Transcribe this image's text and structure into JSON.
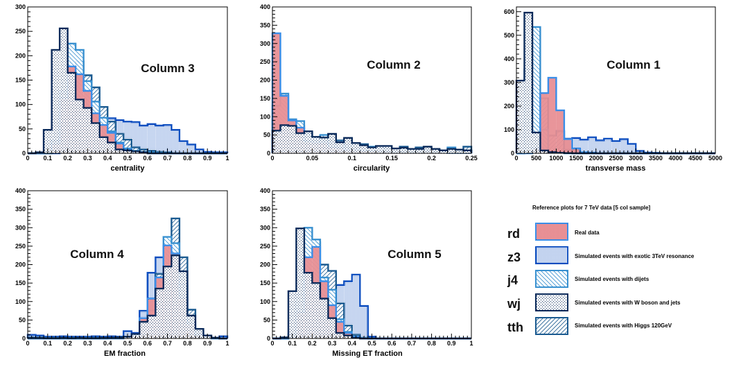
{
  "legend": {
    "title": "Reference plots for 7 TeV data [5 col sample]",
    "entries": [
      {
        "code": "rd",
        "label": "Real data",
        "series": "rd"
      },
      {
        "code": "z3",
        "label": "Simulated events with exotic 3TeV resonance",
        "series": "z3"
      },
      {
        "code": "j4",
        "label": "Simulated events with dijets",
        "series": "j4"
      },
      {
        "code": "wj",
        "label": "Simulated events with W boson and jets",
        "series": "wj"
      },
      {
        "code": "tth",
        "label": "Simulated events with Higgs 120GeV",
        "series": "tth"
      }
    ]
  },
  "series_style": {
    "rd": {
      "stroke": "#3a8ee8",
      "fill": "#d0202a",
      "pattern": "checker"
    },
    "z3": {
      "stroke": "#1050c0",
      "fill": "#1050c0",
      "pattern": "fine-dots"
    },
    "j4": {
      "stroke": "#3890d0",
      "fill": "#3890d0",
      "pattern": "hatch-back"
    },
    "wj": {
      "stroke": "#0a2a5a",
      "fill": "#0a2a5a",
      "pattern": "dots"
    },
    "tth": {
      "stroke": "#1a5a90",
      "fill": "#1a5a90",
      "pattern": "hatch-fwd"
    }
  },
  "chart_data": [
    {
      "type": "bar",
      "id": "col3",
      "title": "Column 3",
      "xlabel": "centrality",
      "ylabel": "",
      "xlim": [
        0,
        1
      ],
      "ylim": [
        0,
        300
      ],
      "xticks": [
        "0",
        "0.1",
        "0.2",
        "0.3",
        "0.4",
        "0.5",
        "0.6",
        "0.7",
        "0.8",
        "0.9",
        "1"
      ],
      "yticks": [
        "0",
        "50",
        "100",
        "150",
        "200",
        "250",
        "300"
      ],
      "bin_width": 0.04,
      "series": [
        {
          "name": "wj",
          "values": [
            0,
            2,
            48,
            212,
            256,
            165,
            110,
            93,
            62,
            33,
            22,
            8,
            6,
            4,
            2,
            0,
            0,
            0,
            0,
            0,
            0,
            0,
            0,
            0,
            0
          ]
        },
        {
          "name": "tth",
          "values": [
            0,
            0,
            0,
            5,
            38,
            118,
            188,
            160,
            135,
            95,
            65,
            40,
            28,
            12,
            8,
            5,
            3,
            2,
            0,
            0,
            0,
            0,
            0,
            0,
            0
          ]
        },
        {
          "name": "j4",
          "values": [
            0,
            0,
            3,
            26,
            126,
            225,
            212,
            148,
            106,
            73,
            45,
            22,
            10,
            5,
            3,
            2,
            1,
            0,
            0,
            0,
            0,
            0,
            0,
            0,
            0
          ]
        },
        {
          "name": "rd",
          "values": [
            0,
            0,
            2,
            20,
            113,
            178,
            162,
            128,
            82,
            58,
            42,
            20,
            8,
            4,
            2,
            0,
            0,
            0,
            0,
            0,
            0,
            0,
            0,
            0,
            0
          ]
        },
        {
          "name": "z3",
          "values": [
            0,
            0,
            0,
            0,
            30,
            53,
            55,
            70,
            62,
            60,
            72,
            68,
            65,
            64,
            57,
            60,
            57,
            58,
            48,
            25,
            18,
            8,
            3,
            2,
            2
          ]
        }
      ]
    },
    {
      "type": "bar",
      "id": "col2",
      "title": "Column 2",
      "xlabel": "circularity",
      "ylabel": "",
      "xlim": [
        0,
        0.25
      ],
      "ylim": [
        0,
        400
      ],
      "xticks": [
        "0",
        "0.05",
        "0.1",
        "0.15",
        "0.2",
        "0.25"
      ],
      "yticks": [
        "0",
        "50",
        "100",
        "150",
        "200",
        "250",
        "300",
        "350",
        "400"
      ],
      "bin_width": 0.01,
      "series": [
        {
          "name": "wj",
          "values": [
            62,
            77,
            75,
            55,
            60,
            45,
            43,
            53,
            30,
            42,
            28,
            22,
            16,
            20,
            20,
            13,
            15,
            12,
            12,
            18,
            12,
            8,
            12,
            10,
            8
          ]
        },
        {
          "name": "tth",
          "values": [
            92,
            76,
            74,
            75,
            58,
            42,
            48,
            52,
            35,
            35,
            25,
            25,
            15,
            18,
            15,
            10,
            18,
            10,
            16,
            12,
            10,
            8,
            10,
            6,
            18
          ]
        },
        {
          "name": "j4",
          "values": [
            130,
            163,
            93,
            88,
            52,
            40,
            50,
            30,
            30,
            20,
            20,
            22,
            18,
            14,
            12,
            12,
            10,
            10,
            8,
            8,
            6,
            6,
            16,
            6,
            6
          ]
        },
        {
          "name": "rd",
          "values": [
            328,
            157,
            90,
            70,
            32,
            30,
            30,
            18,
            15,
            10,
            10,
            8,
            6,
            5,
            4,
            3,
            3,
            2,
            2,
            2,
            2,
            2,
            1,
            1,
            1
          ]
        },
        {
          "name": "z3",
          "values": [
            2,
            2,
            3,
            3,
            4,
            5,
            5,
            8,
            10,
            12,
            10,
            12,
            12,
            10,
            8,
            8,
            8,
            12,
            10,
            10,
            10,
            6,
            6,
            8,
            8
          ]
        }
      ]
    },
    {
      "type": "bar",
      "id": "col1",
      "title": "Column 1",
      "xlabel": "transverse mass",
      "ylabel": "",
      "xlim": [
        0,
        5000
      ],
      "ylim": [
        0,
        620
      ],
      "xticks": [
        "0",
        "500",
        "1000",
        "1500",
        "2000",
        "2500",
        "3000",
        "3500",
        "4000",
        "4500",
        "5000"
      ],
      "yticks": [
        "0",
        "100",
        "200",
        "300",
        "400",
        "500",
        "600"
      ],
      "bin_width": 200,
      "series": [
        {
          "name": "wj",
          "values": [
            308,
            596,
            88,
            12,
            5,
            2,
            1,
            0,
            0,
            0,
            0,
            0,
            0,
            0,
            0,
            0,
            0,
            0,
            0,
            0,
            0,
            0,
            0,
            0,
            0
          ]
        },
        {
          "name": "tth",
          "values": [
            0,
            140,
            115,
            233,
            75,
            93,
            15,
            8,
            5,
            2,
            0,
            0,
            0,
            0,
            0,
            0,
            0,
            0,
            0,
            0,
            0,
            0,
            0,
            0,
            0
          ]
        },
        {
          "name": "j4",
          "values": [
            0,
            355,
            535,
            100,
            10,
            3,
            0,
            0,
            0,
            0,
            0,
            0,
            0,
            0,
            0,
            0,
            0,
            0,
            0,
            0,
            0,
            0,
            0,
            0,
            0
          ]
        },
        {
          "name": "rd",
          "values": [
            0,
            0,
            20,
            255,
            320,
            182,
            60,
            20,
            5,
            2,
            0,
            0,
            0,
            0,
            0,
            0,
            0,
            0,
            0,
            0,
            0,
            0,
            0,
            0,
            0
          ]
        },
        {
          "name": "z3",
          "values": [
            2,
            70,
            30,
            110,
            75,
            95,
            62,
            65,
            58,
            68,
            55,
            62,
            52,
            60,
            40,
            10,
            3,
            2,
            1,
            0,
            0,
            0,
            0,
            0,
            0
          ]
        }
      ]
    },
    {
      "type": "bar",
      "id": "col4",
      "title": "Column 4",
      "xlabel": "EM fraction",
      "ylabel": "",
      "xlim": [
        0,
        1
      ],
      "ylim": [
        0,
        400
      ],
      "xticks": [
        "0",
        "0.1",
        "0.2",
        "0.3",
        "0.4",
        "0.5",
        "0.6",
        "0.7",
        "0.8",
        "0.9",
        "1"
      ],
      "yticks": [
        "0",
        "50",
        "100",
        "150",
        "200",
        "250",
        "300",
        "350",
        "400"
      ],
      "bin_width": 0.04,
      "series": [
        {
          "name": "wj",
          "values": [
            2,
            2,
            1,
            1,
            2,
            1,
            2,
            1,
            1,
            2,
            2,
            3,
            5,
            12,
            45,
            62,
            135,
            195,
            225,
            182,
            62,
            26,
            8,
            2,
            0
          ]
        },
        {
          "name": "tth",
          "values": [
            0,
            0,
            0,
            0,
            0,
            0,
            0,
            0,
            0,
            0,
            1,
            2,
            4,
            8,
            30,
            75,
            175,
            250,
            325,
            220,
            78,
            20,
            5,
            1,
            0
          ]
        },
        {
          "name": "j4",
          "values": [
            3,
            3,
            2,
            2,
            2,
            2,
            2,
            2,
            2,
            2,
            2,
            3,
            5,
            10,
            30,
            75,
            165,
            275,
            258,
            145,
            30,
            8,
            2,
            1,
            0
          ]
        },
        {
          "name": "rd",
          "values": [
            0,
            0,
            0,
            0,
            0,
            0,
            0,
            0,
            0,
            0,
            0,
            0,
            3,
            8,
            55,
            108,
            165,
            252,
            230,
            110,
            40,
            10,
            2,
            0,
            0
          ]
        },
        {
          "name": "z3",
          "values": [
            10,
            8,
            5,
            5,
            6,
            5,
            5,
            5,
            6,
            5,
            6,
            5,
            20,
            15,
            75,
            178,
            220,
            190,
            85,
            20,
            10,
            5,
            2,
            2,
            6
          ]
        }
      ]
    },
    {
      "type": "bar",
      "id": "col5",
      "title": "Column 5",
      "xlabel": "Missing ET fraction",
      "ylabel": "",
      "xlim": [
        0,
        1
      ],
      "ylim": [
        0,
        400
      ],
      "xticks": [
        "0",
        "0.1",
        "0.2",
        "0.3",
        "0.4",
        "0.5",
        "0.6",
        "0.7",
        "0.8",
        "0.9",
        "1"
      ],
      "yticks": [
        "0",
        "50",
        "100",
        "150",
        "200",
        "250",
        "300",
        "350",
        "400"
      ],
      "bin_width": 0.04,
      "series": [
        {
          "name": "wj",
          "values": [
            0,
            3,
            128,
            298,
            178,
            150,
            108,
            55,
            15,
            8,
            2,
            0,
            0,
            0,
            0,
            0,
            0,
            0,
            0,
            0,
            0,
            0,
            0,
            0,
            0
          ]
        },
        {
          "name": "tth",
          "values": [
            0,
            0,
            5,
            42,
            245,
            260,
            200,
            183,
            95,
            35,
            10,
            2,
            0,
            0,
            0,
            0,
            0,
            0,
            0,
            0,
            0,
            0,
            0,
            0,
            0
          ]
        },
        {
          "name": "j4",
          "values": [
            0,
            0,
            12,
            120,
            300,
            268,
            165,
            132,
            52,
            18,
            5,
            1,
            0,
            0,
            0,
            0,
            0,
            0,
            0,
            0,
            0,
            0,
            0,
            0,
            0
          ]
        },
        {
          "name": "rd",
          "values": [
            0,
            0,
            2,
            72,
            220,
            248,
            155,
            90,
            45,
            15,
            5,
            0,
            0,
            0,
            0,
            0,
            0,
            0,
            0,
            0,
            0,
            0,
            0,
            0,
            0
          ]
        },
        {
          "name": "z3",
          "values": [
            0,
            0,
            2,
            28,
            67,
            102,
            100,
            95,
            145,
            155,
            173,
            88,
            5,
            0,
            0,
            0,
            0,
            0,
            0,
            0,
            0,
            0,
            0,
            0,
            0
          ]
        }
      ]
    }
  ]
}
